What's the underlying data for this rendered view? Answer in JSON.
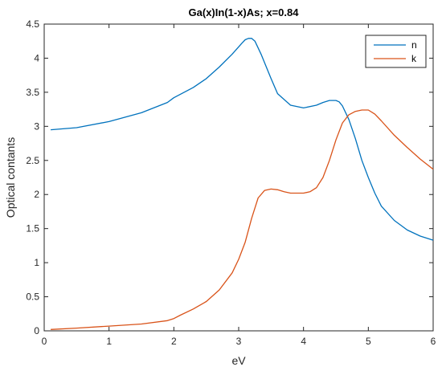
{
  "chart_data": {
    "type": "line",
    "title": "Ga(x)In(1-x)As; x=0.84",
    "xlabel": "eV",
    "ylabel": "Optical contants",
    "xlim": [
      0,
      6
    ],
    "ylim": [
      0,
      4.5
    ],
    "xticks": [
      0,
      1,
      2,
      3,
      4,
      5,
      6
    ],
    "yticks": [
      0,
      0.5,
      1,
      1.5,
      2,
      2.5,
      3,
      3.5,
      4,
      4.5
    ],
    "xtick_labels": [
      "0",
      "1",
      "2",
      "3",
      "4",
      "5",
      "6"
    ],
    "ytick_labels": [
      "0",
      "0.5",
      "1",
      "1.5",
      "2",
      "2.5",
      "3",
      "3.5",
      "4",
      "4.5"
    ],
    "grid": false,
    "legend_position": "top-right",
    "series": [
      {
        "name": "n",
        "color": "#0072BD",
        "x": [
          0.1,
          0.5,
          1.0,
          1.5,
          1.9,
          2.0,
          2.1,
          2.3,
          2.5,
          2.7,
          2.9,
          3.05,
          3.1,
          3.15,
          3.2,
          3.25,
          3.35,
          3.5,
          3.6,
          3.8,
          4.0,
          4.2,
          4.3,
          4.4,
          4.5,
          4.55,
          4.6,
          4.7,
          4.8,
          4.9,
          5.0,
          5.1,
          5.2,
          5.4,
          5.6,
          5.8,
          6.0
        ],
        "y": [
          2.95,
          2.98,
          3.07,
          3.2,
          3.35,
          3.42,
          3.47,
          3.57,
          3.7,
          3.87,
          4.06,
          4.22,
          4.27,
          4.29,
          4.29,
          4.25,
          4.05,
          3.7,
          3.48,
          3.31,
          3.27,
          3.31,
          3.35,
          3.38,
          3.38,
          3.36,
          3.3,
          3.1,
          2.82,
          2.5,
          2.25,
          2.02,
          1.83,
          1.62,
          1.48,
          1.39,
          1.33
        ]
      },
      {
        "name": "k",
        "color": "#D95319",
        "x": [
          0.1,
          0.5,
          1.0,
          1.5,
          1.9,
          2.0,
          2.1,
          2.3,
          2.5,
          2.7,
          2.9,
          3.0,
          3.1,
          3.2,
          3.3,
          3.4,
          3.5,
          3.6,
          3.7,
          3.8,
          3.9,
          4.0,
          4.1,
          4.2,
          4.3,
          4.4,
          4.5,
          4.6,
          4.7,
          4.8,
          4.9,
          5.0,
          5.1,
          5.2,
          5.4,
          5.6,
          5.8,
          6.0
        ],
        "y": [
          0.02,
          0.04,
          0.07,
          0.1,
          0.15,
          0.18,
          0.23,
          0.32,
          0.43,
          0.6,
          0.85,
          1.05,
          1.3,
          1.65,
          1.95,
          2.06,
          2.08,
          2.07,
          2.04,
          2.02,
          2.02,
          2.02,
          2.04,
          2.1,
          2.25,
          2.5,
          2.8,
          3.05,
          3.17,
          3.22,
          3.24,
          3.24,
          3.18,
          3.08,
          2.87,
          2.69,
          2.52,
          2.37
        ]
      }
    ]
  }
}
